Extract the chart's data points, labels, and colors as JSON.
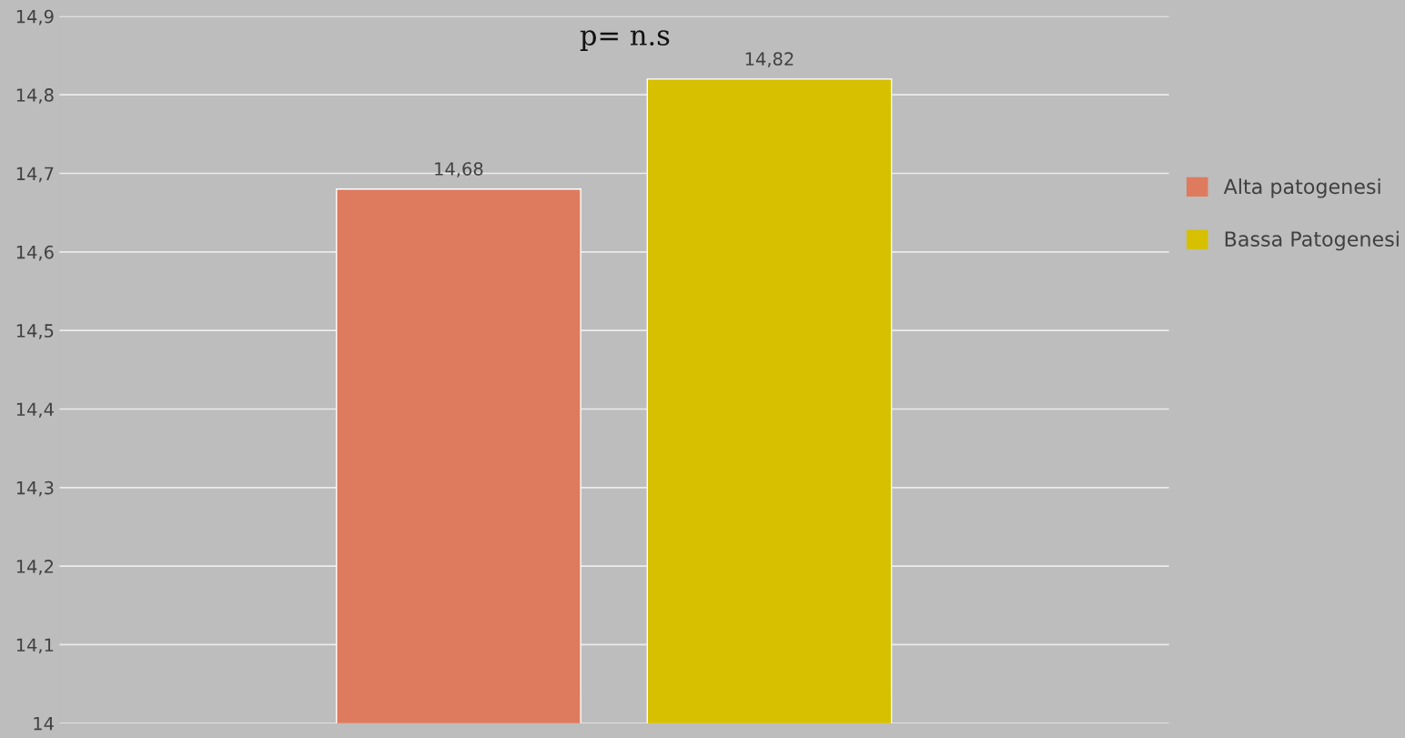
{
  "chart_data": {
    "type": "bar",
    "categories": [
      null
    ],
    "series": [
      {
        "name": "Alta patogenesi",
        "color": "#de7a5e",
        "values": [
          14.68
        ],
        "value_labels": [
          "14,68"
        ]
      },
      {
        "name": "Bassa Patogenesi",
        "color": "#d6c000",
        "values": [
          14.82
        ],
        "value_labels": [
          "14,82"
        ]
      }
    ],
    "ylim": [
      14,
      14.9
    ],
    "yticks": [
      {
        "value": 14,
        "label": "14"
      },
      {
        "value": 14.1,
        "label": "14,1"
      },
      {
        "value": 14.2,
        "label": "14,2"
      },
      {
        "value": 14.3,
        "label": "14,3"
      },
      {
        "value": 14.4,
        "label": "14,4"
      },
      {
        "value": 14.5,
        "label": "14,5"
      },
      {
        "value": 14.6,
        "label": "14,6"
      },
      {
        "value": 14.7,
        "label": "14,7"
      },
      {
        "value": 14.8,
        "label": "14,8"
      },
      {
        "value": 14.9,
        "label": "14,9"
      }
    ],
    "grid": "y",
    "legend": "right",
    "annotations": [
      "p= n.s"
    ]
  }
}
